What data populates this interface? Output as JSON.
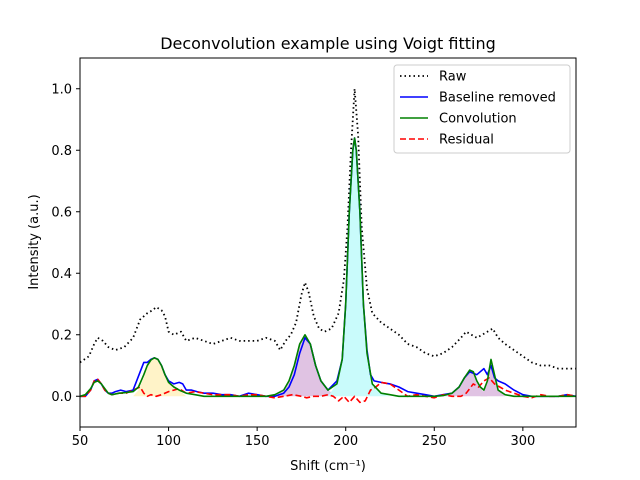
{
  "chart_data": {
    "type": "line",
    "title": "Deconvolution example using Voigt fitting",
    "xlabel": "Shift (cm⁻¹)",
    "ylabel": "Intensity (a.u.)",
    "xlim": [
      50,
      330
    ],
    "ylim": [
      -0.1,
      1.1
    ],
    "xticks": [
      50,
      100,
      150,
      200,
      250,
      300
    ],
    "yticks": [
      0.0,
      0.2,
      0.4,
      0.6,
      0.8,
      1.0
    ],
    "legend_position": "upper-right",
    "grid": false,
    "series": [
      {
        "name": "Raw",
        "color": "#000000",
        "style": "dotted",
        "x": [
          50,
          55,
          58,
          60,
          63,
          66,
          70,
          75,
          80,
          84,
          86,
          88,
          91,
          93,
          96,
          98,
          100,
          103,
          107,
          110,
          115,
          120,
          125,
          130,
          135,
          140,
          145,
          150,
          155,
          160,
          163,
          166,
          169,
          172,
          175,
          177,
          179,
          182,
          185,
          188,
          192,
          196,
          199,
          201,
          203,
          205,
          207,
          209,
          212,
          215,
          220,
          225,
          230,
          235,
          240,
          245,
          250,
          255,
          260,
          265,
          268,
          271,
          274,
          277,
          280,
          283,
          286,
          290,
          295,
          300,
          305,
          310,
          315,
          320,
          325,
          330
        ],
        "y": [
          0.11,
          0.13,
          0.17,
          0.19,
          0.18,
          0.16,
          0.15,
          0.16,
          0.19,
          0.25,
          0.26,
          0.27,
          0.28,
          0.29,
          0.28,
          0.26,
          0.21,
          0.2,
          0.21,
          0.18,
          0.19,
          0.18,
          0.17,
          0.18,
          0.19,
          0.18,
          0.18,
          0.18,
          0.19,
          0.18,
          0.15,
          0.18,
          0.2,
          0.24,
          0.33,
          0.37,
          0.34,
          0.26,
          0.22,
          0.21,
          0.22,
          0.27,
          0.38,
          0.55,
          0.8,
          1.0,
          0.85,
          0.55,
          0.35,
          0.27,
          0.24,
          0.22,
          0.2,
          0.17,
          0.16,
          0.14,
          0.13,
          0.14,
          0.16,
          0.19,
          0.21,
          0.2,
          0.19,
          0.2,
          0.21,
          0.22,
          0.19,
          0.17,
          0.15,
          0.13,
          0.11,
          0.1,
          0.1,
          0.09,
          0.09,
          0.09
        ]
      },
      {
        "name": "Baseline removed",
        "color": "#0000ff",
        "style": "solid",
        "x": [
          50,
          53,
          56,
          58,
          60,
          62,
          64,
          66,
          68,
          70,
          73,
          76,
          80,
          84,
          86,
          88,
          90,
          92,
          94,
          96,
          98,
          100,
          103,
          106,
          108,
          110,
          113,
          116,
          120,
          125,
          130,
          135,
          140,
          145,
          150,
          155,
          160,
          165,
          168,
          171,
          174,
          177,
          180,
          183,
          186,
          190,
          195,
          198,
          200,
          202,
          204,
          205,
          206,
          208,
          210,
          212,
          214,
          216,
          220,
          225,
          230,
          235,
          240,
          245,
          250,
          255,
          260,
          264,
          267,
          270,
          272,
          274,
          276,
          278,
          280,
          282,
          284,
          286,
          290,
          295,
          300,
          305,
          310,
          315,
          320,
          325,
          330
        ],
        "y": [
          0.0,
          0.0,
          0.02,
          0.05,
          0.055,
          0.04,
          0.02,
          0.01,
          0.01,
          0.015,
          0.02,
          0.015,
          0.02,
          0.08,
          0.11,
          0.11,
          0.12,
          0.125,
          0.12,
          0.1,
          0.07,
          0.05,
          0.04,
          0.045,
          0.04,
          0.02,
          0.02,
          0.015,
          0.01,
          0.01,
          0.005,
          0.005,
          0.0,
          0.01,
          0.005,
          0.0,
          0.0,
          0.01,
          0.03,
          0.07,
          0.14,
          0.19,
          0.17,
          0.1,
          0.05,
          0.02,
          0.05,
          0.12,
          0.3,
          0.6,
          0.8,
          0.84,
          0.8,
          0.6,
          0.3,
          0.15,
          0.07,
          0.05,
          0.045,
          0.04,
          0.03,
          0.015,
          0.01,
          0.005,
          0.0,
          0.005,
          0.01,
          0.03,
          0.06,
          0.08,
          0.075,
          0.07,
          0.08,
          0.09,
          0.07,
          0.1,
          0.06,
          0.05,
          0.04,
          0.02,
          0.005,
          0.0,
          0.0,
          0.0,
          0.0,
          0.005,
          0.0
        ]
      },
      {
        "name": "Convolution",
        "color": "#008000",
        "style": "solid",
        "x": [
          50,
          53,
          56,
          58,
          60,
          62,
          64,
          66,
          68,
          72,
          76,
          80,
          83,
          86,
          88,
          90,
          92,
          94,
          96,
          98,
          100,
          103,
          106,
          110,
          115,
          120,
          125,
          130,
          140,
          150,
          155,
          160,
          165,
          168,
          171,
          174,
          177,
          180,
          183,
          186,
          190,
          195,
          198,
          200,
          202,
          204,
          205,
          206,
          208,
          210,
          212,
          215,
          220,
          225,
          230,
          240,
          250,
          255,
          260,
          264,
          267,
          270,
          272,
          274,
          276,
          278,
          280,
          282,
          284,
          286,
          290,
          295,
          300,
          310,
          320,
          330
        ],
        "y": [
          0.0,
          0.005,
          0.025,
          0.045,
          0.05,
          0.04,
          0.025,
          0.01,
          0.005,
          0.01,
          0.012,
          0.015,
          0.03,
          0.07,
          0.1,
          0.118,
          0.125,
          0.12,
          0.1,
          0.07,
          0.045,
          0.03,
          0.02,
          0.01,
          0.005,
          0.0,
          0.0,
          0.0,
          0.0,
          0.0,
          0.0,
          0.005,
          0.02,
          0.05,
          0.1,
          0.17,
          0.2,
          0.17,
          0.1,
          0.05,
          0.02,
          0.04,
          0.12,
          0.3,
          0.6,
          0.8,
          0.84,
          0.8,
          0.6,
          0.3,
          0.14,
          0.04,
          0.01,
          0.005,
          0.0,
          0.0,
          0.0,
          0.002,
          0.01,
          0.03,
          0.06,
          0.085,
          0.08,
          0.05,
          0.03,
          0.02,
          0.05,
          0.12,
          0.07,
          0.02,
          0.005,
          0.0,
          0.0,
          0.0,
          0.0,
          0.0
        ]
      },
      {
        "name": "Residual",
        "color": "#ff0000",
        "style": "dashed",
        "x": [
          50,
          53,
          56,
          58,
          60,
          62,
          64,
          66,
          68,
          72,
          76,
          80,
          84,
          86,
          88,
          90,
          93,
          96,
          100,
          103,
          106,
          110,
          115,
          120,
          125,
          130,
          135,
          140,
          145,
          150,
          155,
          160,
          165,
          170,
          175,
          178,
          182,
          186,
          190,
          193,
          196,
          199,
          202,
          205,
          208,
          211,
          214,
          217,
          220,
          225,
          230,
          235,
          240,
          245,
          250,
          255,
          260,
          265,
          268,
          272,
          275,
          278,
          281,
          284,
          287,
          290,
          295,
          300,
          305,
          310,
          315,
          320,
          325,
          330
        ],
        "y": [
          0.0,
          0.0,
          0.02,
          0.05,
          0.055,
          0.04,
          0.02,
          0.01,
          0.005,
          0.01,
          0.01,
          0.02,
          0.03,
          0.01,
          0.0,
          0.005,
          0.0,
          0.005,
          0.015,
          0.02,
          0.025,
          0.01,
          0.015,
          0.01,
          0.005,
          0.005,
          0.005,
          0.0,
          0.005,
          0.005,
          0.0,
          -0.005,
          0.0,
          0.005,
          0.0,
          -0.005,
          0.0,
          0.0,
          0.005,
          0.0,
          -0.015,
          0.0,
          -0.02,
          0.0,
          -0.02,
          -0.015,
          0.02,
          0.03,
          0.045,
          0.04,
          0.02,
          0.0,
          0.005,
          0.0,
          -0.005,
          0.005,
          0.0,
          0.0,
          0.01,
          0.04,
          0.03,
          0.05,
          0.06,
          0.04,
          0.03,
          0.02,
          0.01,
          0.0,
          -0.005,
          0.005,
          0.0,
          0.0,
          0.005,
          0.0
        ]
      }
    ],
    "fill_areas": [
      {
        "color": "#fff3c8",
        "x": [
          80,
          83,
          86,
          88,
          90,
          92,
          94,
          96,
          98,
          100,
          103,
          106,
          110
        ],
        "y": [
          0.0,
          0.02,
          0.06,
          0.095,
          0.115,
          0.125,
          0.12,
          0.1,
          0.07,
          0.045,
          0.03,
          0.02,
          0.0
        ]
      },
      {
        "color": "#e0c3e3",
        "x": [
          160,
          165,
          168,
          171,
          174,
          177,
          180,
          183,
          186,
          190,
          195
        ],
        "y": [
          0.0,
          0.02,
          0.05,
          0.1,
          0.17,
          0.2,
          0.17,
          0.1,
          0.05,
          0.02,
          0.0
        ]
      },
      {
        "color": "#c9fbfb",
        "x": [
          190,
          195,
          198,
          200,
          202,
          204,
          205,
          206,
          208,
          210,
          212,
          215,
          220,
          225
        ],
        "y": [
          0.0,
          0.04,
          0.12,
          0.3,
          0.6,
          0.8,
          0.84,
          0.8,
          0.6,
          0.3,
          0.14,
          0.04,
          0.01,
          0.0
        ]
      },
      {
        "color": "#e0c3e3",
        "x": [
          255,
          260,
          264,
          267,
          270,
          272,
          274,
          276,
          278,
          280
        ],
        "y": [
          0.0,
          0.01,
          0.03,
          0.06,
          0.085,
          0.08,
          0.05,
          0.03,
          0.01,
          0.0
        ]
      },
      {
        "color": "#e0c3e3",
        "x": [
          276,
          278,
          280,
          282,
          284,
          286,
          290
        ],
        "y": [
          0.0,
          0.02,
          0.05,
          0.12,
          0.07,
          0.02,
          0.0
        ]
      }
    ]
  }
}
